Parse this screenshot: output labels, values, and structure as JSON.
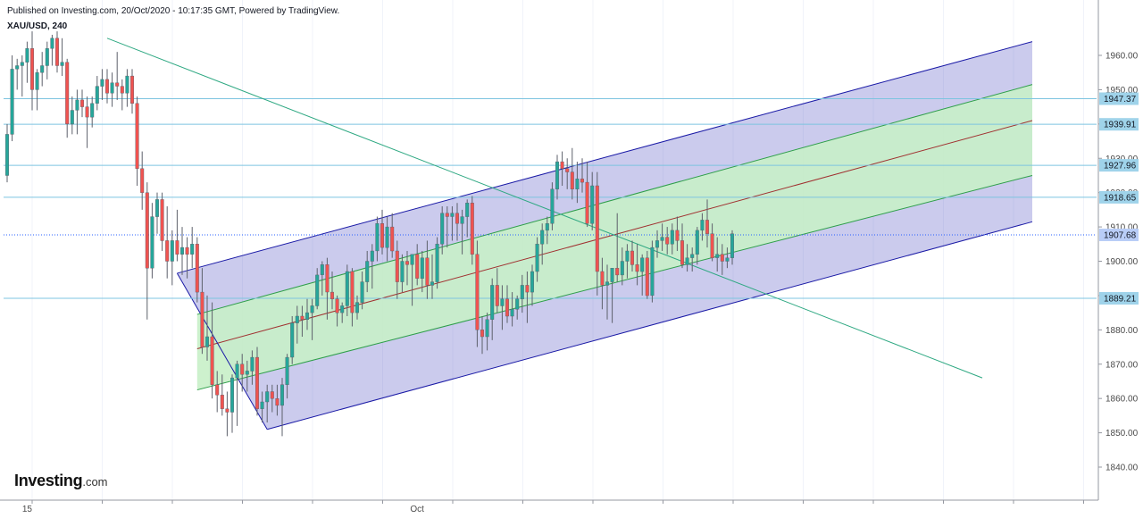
{
  "header": {
    "publisher": "Published on Investing.com, 20/Oct/2020 - 10:17:35 GMT, Powered by TradingView.",
    "symbol": "XAU/USD, 240"
  },
  "branding": {
    "logo_main": "Investing",
    "logo_suffix": ".com"
  },
  "colors": {
    "up": "#26a69a",
    "down": "#ef5350",
    "channel_outer": "#1a1aa6",
    "channel_inner": "#2e9e4a",
    "median": "#a03030",
    "level_line": "#7ec4e0",
    "level_tag": "#9fd3ea",
    "last_price_tag": "#2962ff"
  },
  "chart_data": {
    "type": "candlestick",
    "symbol": "XAU/USD",
    "timeframe": "240",
    "ylim": [
      1832,
      1965
    ],
    "y_ticks": [
      1840,
      1850,
      1860,
      1870,
      1880,
      1890,
      1900,
      1910,
      1920,
      1930,
      1940,
      1950,
      1960
    ],
    "x_labels": [
      {
        "label": "15",
        "bar": 4
      },
      {
        "label": "Oct",
        "bar": 82
      }
    ],
    "price_levels": [
      {
        "value": 1947.37,
        "label": "1947.37"
      },
      {
        "value": 1939.91,
        "label": "1939.91"
      },
      {
        "value": 1927.96,
        "label": "1927.96"
      },
      {
        "value": 1918.65,
        "label": "1918.65"
      },
      {
        "value": 1907.68,
        "label": "1907.68",
        "current": true
      },
      {
        "value": 1889.21,
        "label": "1889.21"
      }
    ],
    "trendline": {
      "x1": 20,
      "y1": 1965,
      "x2": 195,
      "y2": 1866
    },
    "regression_channel": {
      "outer_upper": {
        "x1": 34,
        "y1": 1896.5,
        "x2": 205,
        "y2": 1964
      },
      "inner_upper": {
        "x1": 38,
        "y1": 1884.5,
        "x2": 205,
        "y2": 1951.5
      },
      "median": {
        "x1": 38,
        "y1": 1874.5,
        "x2": 205,
        "y2": 1941
      },
      "inner_lower": {
        "x1": 38,
        "y1": 1862.5,
        "x2": 205,
        "y2": 1925
      },
      "outer_lower": {
        "x1": 52,
        "y1": 1851,
        "x2": 205,
        "y2": 1911.5
      },
      "pivot": {
        "x": 34,
        "y": 1896.5
      }
    },
    "candles": [
      [
        1925,
        1940,
        1923,
        1937
      ],
      [
        1937,
        1960,
        1935,
        1956
      ],
      [
        1956,
        1959,
        1950,
        1957
      ],
      [
        1957,
        1960,
        1948,
        1958
      ],
      [
        1958,
        1964,
        1952,
        1962
      ],
      [
        1962,
        1967,
        1944,
        1950
      ],
      [
        1950,
        1956,
        1944,
        1955
      ],
      [
        1955,
        1961,
        1951,
        1957
      ],
      [
        1957,
        1964,
        1953,
        1962
      ],
      [
        1962,
        1966,
        1957,
        1965
      ],
      [
        1965,
        1967,
        1955,
        1957
      ],
      [
        1957,
        1965,
        1954,
        1958
      ],
      [
        1958,
        1959,
        1936,
        1940
      ],
      [
        1940,
        1948,
        1937,
        1944
      ],
      [
        1944,
        1950,
        1937,
        1947
      ],
      [
        1947,
        1950,
        1942,
        1945
      ],
      [
        1945,
        1948,
        1933,
        1942
      ],
      [
        1942,
        1948,
        1939,
        1946
      ],
      [
        1946,
        1954,
        1944,
        1951
      ],
      [
        1951,
        1956,
        1947,
        1953
      ],
      [
        1953,
        1956,
        1946,
        1949
      ],
      [
        1949,
        1955,
        1945,
        1952
      ],
      [
        1952,
        1961,
        1947,
        1951
      ],
      [
        1951,
        1953,
        1944,
        1949
      ],
      [
        1949,
        1956,
        1945,
        1954
      ],
      [
        1954,
        1956,
        1943,
        1946
      ],
      [
        1946,
        1948,
        1922,
        1927
      ],
      [
        1927,
        1932,
        1915,
        1920
      ],
      [
        1920,
        1923,
        1883,
        1898
      ],
      [
        1898,
        1917,
        1895,
        1913
      ],
      [
        1913,
        1920,
        1908,
        1918
      ],
      [
        1918,
        1920,
        1903,
        1906
      ],
      [
        1906,
        1916,
        1895,
        1900
      ],
      [
        1900,
        1909,
        1893,
        1906
      ],
      [
        1906,
        1915,
        1900,
        1902
      ],
      [
        1902,
        1910,
        1896,
        1904
      ],
      [
        1904,
        1907,
        1895,
        1902
      ],
      [
        1902,
        1910,
        1898,
        1905
      ],
      [
        1905,
        1907,
        1888,
        1891
      ],
      [
        1891,
        1898,
        1873,
        1875
      ],
      [
        1875,
        1890,
        1871,
        1878
      ],
      [
        1878,
        1888,
        1860,
        1864
      ],
      [
        1864,
        1868,
        1856,
        1861
      ],
      [
        1861,
        1867,
        1855,
        1857
      ],
      [
        1857,
        1862,
        1849,
        1856
      ],
      [
        1856,
        1867,
        1850,
        1866
      ],
      [
        1866,
        1871,
        1852,
        1870
      ],
      [
        1870,
        1873,
        1862,
        1867
      ],
      [
        1867,
        1871,
        1862,
        1868
      ],
      [
        1868,
        1874,
        1864,
        1872
      ],
      [
        1872,
        1875,
        1855,
        1857
      ],
      [
        1857,
        1862,
        1853,
        1859
      ],
      [
        1859,
        1864,
        1853,
        1862
      ],
      [
        1862,
        1864,
        1856,
        1860
      ],
      [
        1860,
        1864,
        1855,
        1858
      ],
      [
        1858,
        1866,
        1849,
        1864
      ],
      [
        1864,
        1873,
        1860,
        1872
      ],
      [
        1872,
        1884,
        1870,
        1882
      ],
      [
        1882,
        1887,
        1876,
        1884
      ],
      [
        1884,
        1887,
        1878,
        1883
      ],
      [
        1883,
        1889,
        1880,
        1885
      ],
      [
        1885,
        1889,
        1877,
        1887
      ],
      [
        1887,
        1898,
        1886,
        1896
      ],
      [
        1896,
        1900,
        1890,
        1899
      ],
      [
        1899,
        1901,
        1883,
        1891
      ],
      [
        1891,
        1897,
        1886,
        1889
      ],
      [
        1889,
        1890,
        1881,
        1885
      ],
      [
        1885,
        1888,
        1882,
        1887
      ],
      [
        1887,
        1899,
        1884,
        1897
      ],
      [
        1897,
        1898,
        1881,
        1885
      ],
      [
        1885,
        1890,
        1883,
        1888
      ],
      [
        1888,
        1897,
        1886,
        1894
      ],
      [
        1894,
        1903,
        1891,
        1900
      ],
      [
        1900,
        1905,
        1892,
        1903
      ],
      [
        1903,
        1913,
        1900,
        1911
      ],
      [
        1911,
        1915,
        1902,
        1904
      ],
      [
        1904,
        1913,
        1900,
        1910
      ],
      [
        1910,
        1914,
        1901,
        1903
      ],
      [
        1903,
        1906,
        1889,
        1894
      ],
      [
        1894,
        1902,
        1891,
        1900
      ],
      [
        1900,
        1903,
        1893,
        1899
      ],
      [
        1899,
        1902,
        1887,
        1902
      ],
      [
        1902,
        1905,
        1893,
        1895
      ],
      [
        1895,
        1903,
        1891,
        1901
      ],
      [
        1901,
        1906,
        1889,
        1893
      ],
      [
        1893,
        1902,
        1889,
        1894
      ],
      [
        1894,
        1907,
        1892,
        1905
      ],
      [
        1905,
        1916,
        1902,
        1914
      ],
      [
        1914,
        1916,
        1904,
        1913
      ],
      [
        1913,
        1916,
        1906,
        1914
      ],
      [
        1914,
        1917,
        1906,
        1911
      ],
      [
        1911,
        1915,
        1902,
        1913
      ],
      [
        1913,
        1918,
        1907,
        1917
      ],
      [
        1917,
        1919,
        1899,
        1902
      ],
      [
        1902,
        1906,
        1875,
        1880
      ],
      [
        1880,
        1884,
        1873,
        1878
      ],
      [
        1878,
        1885,
        1874,
        1883
      ],
      [
        1883,
        1895,
        1877,
        1893
      ],
      [
        1893,
        1898,
        1885,
        1887
      ],
      [
        1887,
        1893,
        1880,
        1889
      ],
      [
        1889,
        1893,
        1882,
        1884
      ],
      [
        1884,
        1891,
        1881,
        1886
      ],
      [
        1886,
        1890,
        1883,
        1889
      ],
      [
        1889,
        1896,
        1885,
        1893
      ],
      [
        1893,
        1897,
        1882,
        1891
      ],
      [
        1891,
        1899,
        1887,
        1897
      ],
      [
        1897,
        1907,
        1894,
        1905
      ],
      [
        1905,
        1911,
        1899,
        1909
      ],
      [
        1909,
        1913,
        1905,
        1911
      ],
      [
        1911,
        1923,
        1909,
        1921
      ],
      [
        1921,
        1931,
        1918,
        1929
      ],
      [
        1929,
        1932,
        1922,
        1927
      ],
      [
        1927,
        1930,
        1921,
        1926
      ],
      [
        1926,
        1933,
        1918,
        1921
      ],
      [
        1921,
        1929,
        1917,
        1924
      ],
      [
        1924,
        1930,
        1920,
        1923
      ],
      [
        1923,
        1929,
        1910,
        1911
      ],
      [
        1911,
        1926,
        1909,
        1922
      ],
      [
        1922,
        1926,
        1890,
        1897
      ],
      [
        1897,
        1901,
        1886,
        1893
      ],
      [
        1893,
        1899,
        1883,
        1894
      ],
      [
        1894,
        1897,
        1882,
        1898
      ],
      [
        1898,
        1914,
        1894,
        1896
      ],
      [
        1896,
        1904,
        1893,
        1900
      ],
      [
        1900,
        1905,
        1895,
        1903
      ],
      [
        1903,
        1906,
        1897,
        1899
      ],
      [
        1899,
        1905,
        1893,
        1897
      ],
      [
        1897,
        1902,
        1890,
        1901
      ],
      [
        1901,
        1903,
        1889,
        1890
      ],
      [
        1890,
        1906,
        1888,
        1904
      ],
      [
        1904,
        1909,
        1901,
        1906
      ],
      [
        1906,
        1911,
        1903,
        1907
      ],
      [
        1907,
        1910,
        1902,
        1905
      ],
      [
        1905,
        1911,
        1902,
        1909
      ],
      [
        1909,
        1913,
        1903,
        1906
      ],
      [
        1906,
        1911,
        1898,
        1899
      ],
      [
        1899,
        1905,
        1897,
        1901
      ],
      [
        1901,
        1904,
        1897,
        1902
      ],
      [
        1902,
        1910,
        1899,
        1909
      ],
      [
        1909,
        1914,
        1906,
        1912
      ],
      [
        1912,
        1918,
        1904,
        1908
      ],
      [
        1908,
        1911,
        1900,
        1901
      ],
      [
        1901,
        1907,
        1897,
        1902
      ],
      [
        1902,
        1905,
        1896,
        1900
      ],
      [
        1900,
        1904,
        1898,
        1901
      ],
      [
        1901,
        1909,
        1899,
        1908
      ]
    ]
  }
}
